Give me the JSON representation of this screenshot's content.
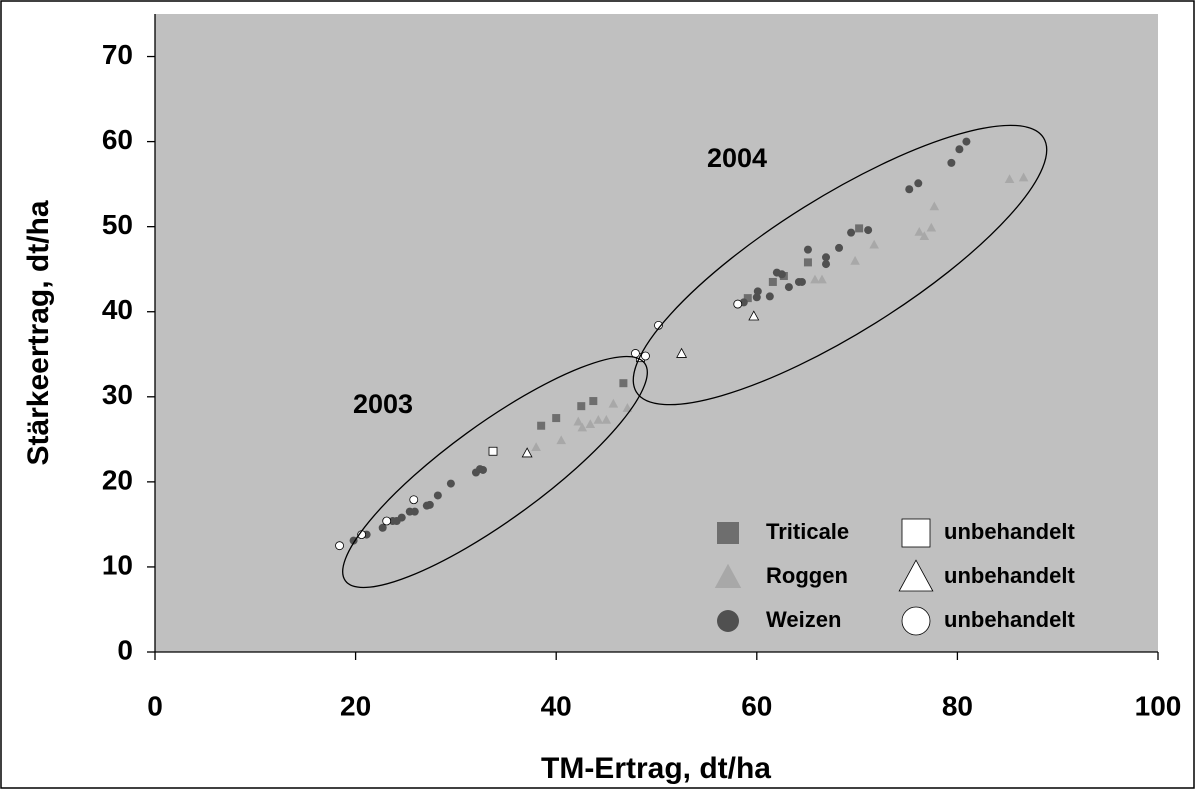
{
  "chart_data": {
    "type": "scatter",
    "xlabel": "TM-Ertrag, dt/ha",
    "ylabel": "Stärkeertrag, dt/ha",
    "xlim": [
      0,
      100
    ],
    "xticks": [
      0,
      20,
      40,
      60,
      80,
      100
    ],
    "ylim": [
      0,
      75
    ],
    "yticks": [
      0,
      10,
      20,
      30,
      40,
      50,
      60,
      70
    ],
    "background": "#c0c0c0",
    "annotations": [
      "2003",
      "2004"
    ],
    "series": [
      {
        "name": "Triticale",
        "marker": "square",
        "color": "#6e6e6e",
        "x": [
          38.5,
          40.0,
          42.5,
          43.7,
          46.7,
          59.1,
          61.6,
          62.7,
          65.1,
          70.2
        ],
        "y": [
          26.6,
          27.5,
          28.9,
          29.5,
          31.6,
          41.6,
          43.5,
          44.2,
          45.8,
          49.8
        ]
      },
      {
        "name": "unbehandelt",
        "marker": "square",
        "color": "#ffffff",
        "x": [
          33.7,
          48.4
        ],
        "y": [
          23.6,
          34.6
        ]
      },
      {
        "name": "Roggen",
        "marker": "triangle",
        "color": "#a8a8a8",
        "x": [
          38.0,
          40.5,
          42.2,
          42.6,
          43.4,
          44.2,
          45.0,
          45.7,
          47.1,
          65.8,
          66.5,
          69.8,
          71.7,
          76.2,
          76.7,
          77.4,
          77.7,
          85.2,
          86.6
        ],
        "y": [
          24.1,
          24.9,
          27.1,
          26.4,
          26.8,
          27.3,
          27.3,
          29.2,
          28.7,
          43.8,
          43.8,
          46.0,
          47.9,
          49.4,
          48.9,
          49.9,
          52.4,
          55.6,
          55.8
        ]
      },
      {
        "name": "unbehandelt",
        "marker": "triangle",
        "color": "#ffffff",
        "x": [
          37.1,
          52.5,
          59.7
        ],
        "y": [
          23.4,
          35.1,
          39.5
        ]
      },
      {
        "name": "Weizen",
        "marker": "circle",
        "color": "#505050",
        "x": [
          19.8,
          21.1,
          22.7,
          23.7,
          24.1,
          24.6,
          25.4,
          25.9,
          27.1,
          27.4,
          28.2,
          29.5,
          32.0,
          32.4,
          32.7,
          58.7,
          60.0,
          60.1,
          61.3,
          62.0,
          62.5,
          63.2,
          64.2,
          64.5,
          65.1,
          66.9,
          66.9,
          68.2,
          69.4,
          71.1,
          75.2,
          76.1,
          79.4,
          80.2,
          80.9
        ],
        "y": [
          13.1,
          13.8,
          14.6,
          15.4,
          15.4,
          15.8,
          16.5,
          16.5,
          17.2,
          17.3,
          18.4,
          19.8,
          21.1,
          21.5,
          21.4,
          41.1,
          41.7,
          42.4,
          41.8,
          44.6,
          44.4,
          42.9,
          43.5,
          43.5,
          47.3,
          46.4,
          45.6,
          47.5,
          49.3,
          49.6,
          54.4,
          55.1,
          57.5,
          59.1,
          60.0
        ]
      },
      {
        "name": "unbehandelt",
        "marker": "circle",
        "color": "#ffffff",
        "x": [
          18.4,
          20.6,
          23.1,
          25.8,
          47.9,
          48.9,
          50.2,
          58.1
        ],
        "y": [
          12.5,
          13.8,
          15.4,
          17.9,
          35.1,
          34.8,
          38.4,
          40.9
        ]
      }
    ]
  }
}
